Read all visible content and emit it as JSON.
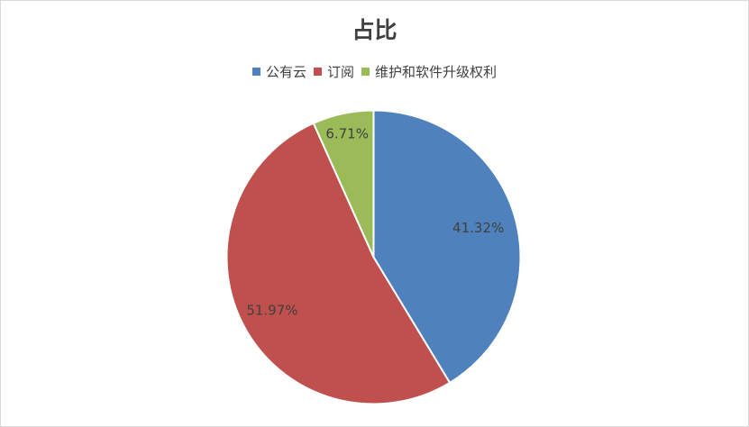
{
  "chart_data": {
    "type": "pie",
    "title": "占比",
    "legend_position": "top",
    "categories": [
      "公有云",
      "订阅",
      "维护和软件升级权利"
    ],
    "values": [
      41.32,
      51.97,
      6.71
    ],
    "labels": [
      "41.32%",
      "51.97%",
      "6.71%"
    ],
    "colors": [
      "#4f81bd",
      "#c0504d",
      "#9bbb59"
    ]
  }
}
